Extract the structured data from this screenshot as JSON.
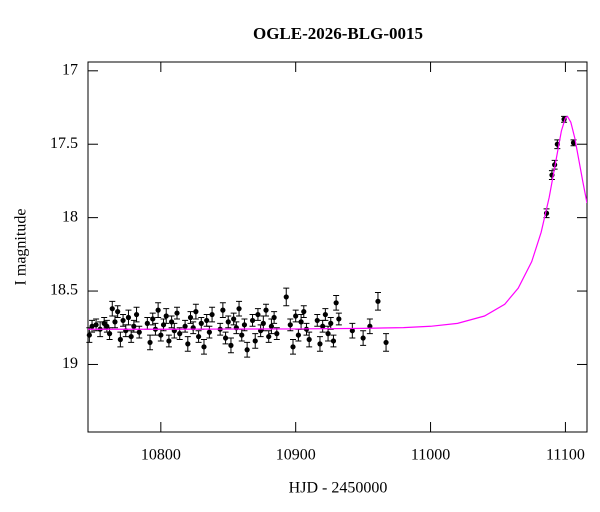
{
  "chart_data": {
    "type": "scatter",
    "title": "OGLE-2026-BLG-0015",
    "x_label": "HJD - 2450000",
    "y_label": "I magnitude",
    "xlim": [
      10746,
      11116
    ],
    "ylim": [
      19.46,
      16.94
    ],
    "xticks": [
      10800,
      10900,
      11000,
      11100
    ],
    "yticks": [
      17,
      17.5,
      18,
      18.5,
      19
    ],
    "series": [
      {
        "type": "errorbar",
        "color": "#000000",
        "x": [
          10747,
          10749,
          10752,
          10755,
          10758,
          10760,
          10762,
          10764,
          10766,
          10768,
          10770,
          10772,
          10774,
          10776,
          10778,
          10780,
          10782,
          10784,
          10790,
          10792,
          10794,
          10796,
          10798,
          10800,
          10802,
          10804,
          10806,
          10808,
          10810,
          10812,
          10814,
          10818,
          10820,
          10822,
          10824,
          10826,
          10828,
          10830,
          10832,
          10834,
          10836,
          10838,
          10844,
          10846,
          10848,
          10850,
          10852,
          10854,
          10856,
          10858,
          10860,
          10862,
          10864,
          10868,
          10870,
          10872,
          10874,
          10876,
          10878,
          10880,
          10882,
          10884,
          10886,
          10893,
          10896,
          10898,
          10900,
          10902,
          10904,
          10906,
          10908,
          10910,
          10916,
          10918,
          10920,
          10922,
          10924,
          10926,
          10928,
          10930,
          10932,
          10942,
          10950,
          10955,
          10961,
          10967,
          11086,
          11090,
          11092,
          11094,
          11099,
          11106
        ],
        "values": [
          18.8,
          18.74,
          18.73,
          18.76,
          18.72,
          18.74,
          18.79,
          18.62,
          18.71,
          18.64,
          18.83,
          18.7,
          18.77,
          18.68,
          18.81,
          18.74,
          18.66,
          18.78,
          18.72,
          18.85,
          18.69,
          18.76,
          18.63,
          18.8,
          18.73,
          18.67,
          18.84,
          18.71,
          18.77,
          18.65,
          18.79,
          18.74,
          18.86,
          18.68,
          18.75,
          18.64,
          18.81,
          18.72,
          18.88,
          18.7,
          18.78,
          18.66,
          18.76,
          18.63,
          18.82,
          18.71,
          18.87,
          18.69,
          18.75,
          18.62,
          18.8,
          18.73,
          18.9,
          18.7,
          18.84,
          18.66,
          18.77,
          18.72,
          18.63,
          18.81,
          18.74,
          18.68,
          18.79,
          18.54,
          18.73,
          18.88,
          18.67,
          18.8,
          18.71,
          18.64,
          18.76,
          18.83,
          18.7,
          18.86,
          18.74,
          18.66,
          18.79,
          18.72,
          18.84,
          18.58,
          18.69,
          18.77,
          18.82,
          18.74,
          18.57,
          18.85,
          17.97,
          17.71,
          17.64,
          17.5,
          17.33,
          17.49
        ],
        "errors": [
          0.05,
          0.04,
          0.04,
          0.05,
          0.04,
          0.04,
          0.04,
          0.05,
          0.04,
          0.04,
          0.05,
          0.04,
          0.04,
          0.05,
          0.04,
          0.04,
          0.05,
          0.04,
          0.04,
          0.05,
          0.04,
          0.04,
          0.05,
          0.04,
          0.04,
          0.05,
          0.04,
          0.04,
          0.05,
          0.04,
          0.04,
          0.04,
          0.05,
          0.04,
          0.04,
          0.05,
          0.04,
          0.04,
          0.05,
          0.04,
          0.04,
          0.05,
          0.04,
          0.05,
          0.04,
          0.04,
          0.05,
          0.04,
          0.04,
          0.05,
          0.04,
          0.04,
          0.05,
          0.04,
          0.05,
          0.04,
          0.04,
          0.05,
          0.04,
          0.04,
          0.05,
          0.04,
          0.04,
          0.06,
          0.04,
          0.05,
          0.04,
          0.04,
          0.05,
          0.04,
          0.04,
          0.05,
          0.04,
          0.05,
          0.04,
          0.04,
          0.05,
          0.04,
          0.04,
          0.05,
          0.04,
          0.05,
          0.05,
          0.05,
          0.06,
          0.06,
          0.03,
          0.03,
          0.03,
          0.03,
          0.02,
          0.02
        ]
      },
      {
        "type": "line",
        "color": "#ff00ff",
        "x": [
          10746,
          10800,
          10850,
          10900,
          10950,
          10980,
          11000,
          11020,
          11040,
          11055,
          11065,
          11075,
          11082,
          11088,
          11093,
          11097,
          11100,
          11101.5,
          11104,
          11107,
          11110,
          11113,
          11116
        ],
        "values": [
          18.76,
          18.76,
          18.759,
          18.758,
          18.754,
          18.749,
          18.74,
          18.72,
          18.67,
          18.59,
          18.48,
          18.3,
          18.1,
          17.86,
          17.61,
          17.41,
          17.32,
          17.31,
          17.35,
          17.46,
          17.61,
          17.76,
          17.9
        ]
      }
    ]
  }
}
